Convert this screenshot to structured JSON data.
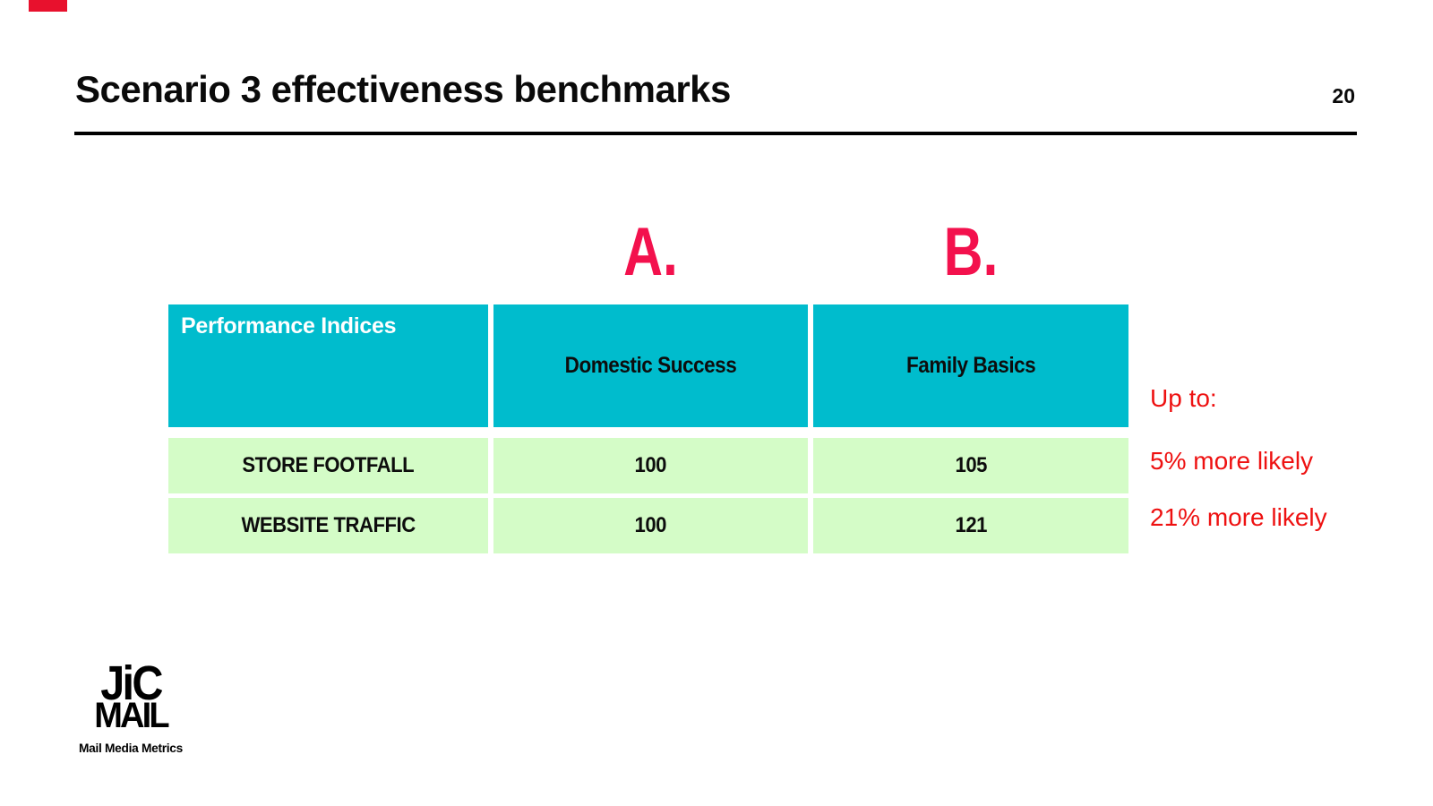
{
  "slide": {
    "title": "Scenario 3 effectiveness benchmarks",
    "page_number": "20"
  },
  "option_labels": {
    "a": "A.",
    "b": "B."
  },
  "table": {
    "header": {
      "col1": "Performance Indices",
      "col2": "Domestic Success",
      "col3": "Family Basics"
    },
    "rows": [
      {
        "metric": "STORE FOOTFALL",
        "a": "100",
        "b": "105"
      },
      {
        "metric": "WEBSITE TRAFFIC",
        "a": "100",
        "b": "121"
      }
    ]
  },
  "annotations": {
    "up_to": "Up to:",
    "row1": "5% more likely",
    "row2": "21% more likely"
  },
  "logo": {
    "line1": "JiC",
    "line2": "MAIL",
    "tagline": "Mail Media Metrics"
  },
  "colors": {
    "header_teal": "#00bccd",
    "row_green": "#d4fcc7",
    "annotation_red": "#ee1111",
    "option_pink": "#f3114d",
    "corner_tab_red": "#e8112d",
    "text_black": "#0a0a0a"
  }
}
